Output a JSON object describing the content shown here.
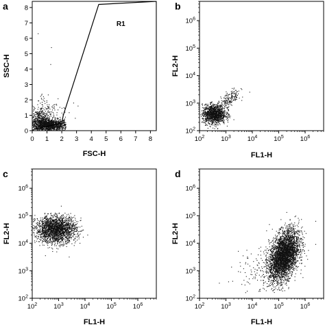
{
  "chart_data": [
    {
      "panel": "a",
      "type": "scatter",
      "xlabel": "FSC-H",
      "ylabel": "SSC-H",
      "xscale": "linear",
      "yscale": "linear",
      "xlim": [
        0,
        8.4
      ],
      "ylim": [
        0,
        8.4
      ],
      "xticks": [
        "0",
        "1",
        "2",
        "3",
        "4",
        "5",
        "6",
        "7",
        "8"
      ],
      "yticks": [
        "0",
        "1",
        "2",
        "3",
        "4",
        "5",
        "6",
        "7",
        "8"
      ],
      "gate": {
        "label": "R1",
        "polygon": [
          [
            0.1,
            0.08
          ],
          [
            2.0,
            0.5
          ],
          [
            2.1,
            1.0
          ],
          [
            4.5,
            8.2
          ],
          [
            8.4,
            8.4
          ],
          [
            8.4,
            0.08
          ]
        ]
      },
      "populations": [
        {
          "center": [
            1.2,
            0.35
          ],
          "spread": [
            0.6,
            0.2
          ],
          "count": 1100,
          "region": [
            0.05,
            2.3,
            0.02,
            0.9
          ]
        },
        {
          "center": [
            0.5,
            0.6
          ],
          "spread": [
            0.35,
            0.4
          ],
          "count": 400,
          "region": [
            0.0,
            1.3,
            0.05,
            1.6
          ]
        },
        {
          "center": [
            1.0,
            1.3
          ],
          "spread": [
            0.7,
            0.6
          ],
          "count": 120,
          "region": [
            0.0,
            3.2,
            0.3,
            2.5
          ]
        }
      ],
      "outliers": [
        [
          0.4,
          6.3
        ],
        [
          1.3,
          5.4
        ],
        [
          1.25,
          4.3
        ],
        [
          2.8,
          1.8
        ],
        [
          3.1,
          1.6
        ]
      ]
    },
    {
      "panel": "b",
      "type": "scatter",
      "xlabel": "FL1-H",
      "ylabel": "FL2-H",
      "xscale": "log",
      "yscale": "log",
      "xlim": [
        2,
        6.7
      ],
      "ylim": [
        2,
        6.7
      ],
      "xticks": [
        "2",
        "3",
        "4",
        "5",
        "6"
      ],
      "yticks": [
        "2",
        "3",
        "4",
        "5",
        "6"
      ],
      "populations": [
        {
          "center": [
            2.55,
            2.6
          ],
          "spread": [
            0.22,
            0.17
          ],
          "count": 1300,
          "region": [
            2.05,
            3.2,
            2.0,
            3.15
          ]
        },
        {
          "center": [
            3.15,
            3.15
          ],
          "spread": [
            0.2,
            0.15
          ],
          "count": 170,
          "diagonal": 1.0,
          "region": [
            2.7,
            3.65,
            2.7,
            3.55
          ]
        }
      ],
      "outliers": [
        [
          3.6,
          3.1
        ],
        [
          3.3,
          2.4
        ],
        [
          3.9,
          3.4
        ]
      ]
    },
    {
      "panel": "c",
      "type": "scatter",
      "xlabel": "FL1-H",
      "ylabel": "FL2-H",
      "xscale": "log",
      "yscale": "log",
      "xlim": [
        2,
        6.7
      ],
      "ylim": [
        2,
        6.7
      ],
      "xticks": [
        "2",
        "3",
        "4",
        "5",
        "6"
      ],
      "yticks": [
        "2",
        "3",
        "4",
        "5",
        "6"
      ],
      "populations": [
        {
          "center": [
            2.9,
            4.5
          ],
          "spread": [
            0.38,
            0.24
          ],
          "count": 2100,
          "region": [
            2.02,
            4.1,
            3.55,
            5.1
          ]
        }
      ],
      "outliers": [
        [
          3.1,
          5.35
        ],
        [
          2.5,
          3.55
        ],
        [
          3.4,
          3.5
        ],
        [
          4.1,
          4.3
        ]
      ]
    },
    {
      "panel": "d",
      "type": "scatter",
      "xlabel": "FL1-H",
      "ylabel": "FL2-H",
      "xscale": "log",
      "yscale": "log",
      "xlim": [
        2,
        6.7
      ],
      "ylim": [
        2,
        6.7
      ],
      "xticks": [
        "2",
        "3",
        "4",
        "5",
        "6"
      ],
      "yticks": [
        "2",
        "3",
        "4",
        "5",
        "6"
      ],
      "populations": [
        {
          "center": [
            5.2,
            3.55
          ],
          "spread": [
            0.28,
            0.42
          ],
          "count": 3600,
          "diagonal": 1.1,
          "region": [
            4.0,
            6.4,
            2.15,
            5.2
          ]
        },
        {
          "center": [
            4.3,
            3.0
          ],
          "spread": [
            0.45,
            0.45
          ],
          "count": 110,
          "region": [
            3.0,
            5.2,
            2.2,
            4.6
          ]
        }
      ],
      "outliers": [
        [
          2.75,
          2.55
        ],
        [
          3.1,
          2.6
        ],
        [
          3.55,
          2.95
        ],
        [
          3.75,
          3.3
        ],
        [
          6.4,
          4.8
        ]
      ]
    }
  ]
}
